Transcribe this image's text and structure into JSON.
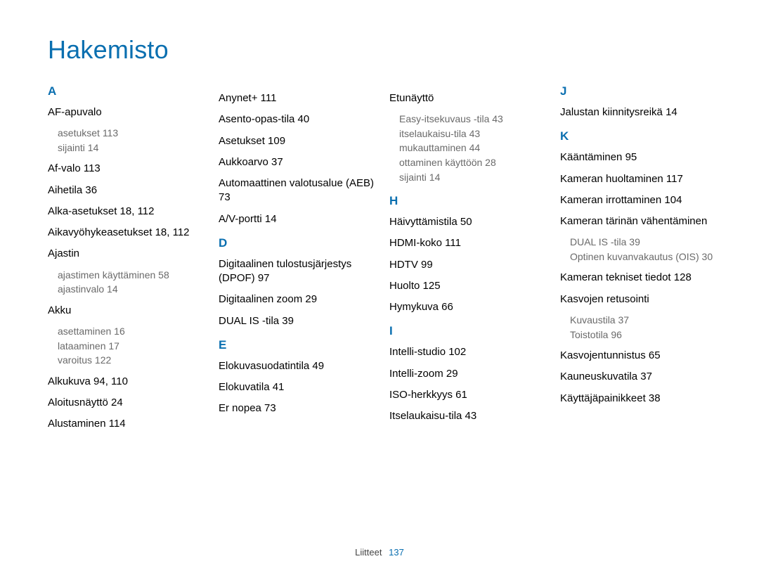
{
  "title": "Hakemisto",
  "footer": {
    "label": "Liitteet",
    "page": "137"
  },
  "colors": {
    "accent": "#0a6fb0",
    "text": "#000000",
    "sub": "#6a6a6a",
    "bg": "#ffffff"
  },
  "columns": [
    [
      {
        "type": "letter",
        "text": "A"
      },
      {
        "type": "entry",
        "text": "AF-apuvalo",
        "subs": [
          "asetukset  113",
          "sijainti  14"
        ]
      },
      {
        "type": "entry",
        "text": "Af-valo  113"
      },
      {
        "type": "entry",
        "text": "Aihetila  36"
      },
      {
        "type": "entry",
        "text": "Alka-asetukset  18, 112"
      },
      {
        "type": "entry",
        "text": "Aikavyöhykeasetukset  18, 112"
      },
      {
        "type": "entry",
        "text": "Ajastin",
        "subs": [
          "ajastimen käyttäminen  58",
          "ajastinvalo  14"
        ]
      },
      {
        "type": "entry",
        "text": "Akku",
        "subs": [
          "asettaminen  16",
          "lataaminen  17",
          "varoitus  122"
        ]
      },
      {
        "type": "entry",
        "text": "Alkukuva  94, 110"
      },
      {
        "type": "entry",
        "text": "Aloitusnäyttö  24"
      },
      {
        "type": "entry",
        "text": "Alustaminen  114"
      }
    ],
    [
      {
        "type": "entry",
        "text": "Anynet+  111"
      },
      {
        "type": "entry",
        "text": "Asento-opas-tila  40"
      },
      {
        "type": "entry",
        "text": "Asetukset  109"
      },
      {
        "type": "entry",
        "text": "Aukkoarvo  37"
      },
      {
        "type": "entry",
        "text": "Automaattinen valotusalue (AEB)  73"
      },
      {
        "type": "entry",
        "text": "A/V-portti  14"
      },
      {
        "type": "letter",
        "text": "D"
      },
      {
        "type": "entry",
        "text": "Digitaalinen tulostusjärjestys (DPOF)  97"
      },
      {
        "type": "entry",
        "text": "Digitaalinen zoom  29"
      },
      {
        "type": "entry",
        "text": "DUAL IS -tila  39"
      },
      {
        "type": "letter",
        "text": "E"
      },
      {
        "type": "entry",
        "text": "Elokuvasuodatintila  49"
      },
      {
        "type": "entry",
        "text": "Elokuvatila  41"
      },
      {
        "type": "entry",
        "text": "Er nopea  73"
      }
    ],
    [
      {
        "type": "entry",
        "text": "Etunäyttö",
        "subs": [
          "Easy-itsekuvaus -tila  43",
          "itselaukaisu-tila  43",
          "mukauttaminen  44",
          "ottaminen käyttöön  28",
          "sijainti  14"
        ]
      },
      {
        "type": "letter",
        "text": "H"
      },
      {
        "type": "entry",
        "text": "Häivyttämistila  50"
      },
      {
        "type": "entry",
        "text": "HDMI-koko  111"
      },
      {
        "type": "entry",
        "text": "HDTV  99"
      },
      {
        "type": "entry",
        "text": "Huolto  125"
      },
      {
        "type": "entry",
        "text": "Hymykuva  66"
      },
      {
        "type": "letter",
        "text": "I"
      },
      {
        "type": "entry",
        "text": "Intelli-studio  102"
      },
      {
        "type": "entry",
        "text": "Intelli-zoom  29"
      },
      {
        "type": "entry",
        "text": "ISO-herkkyys  61"
      },
      {
        "type": "entry",
        "text": "Itselaukaisu-tila  43"
      }
    ],
    [
      {
        "type": "letter",
        "text": "J"
      },
      {
        "type": "entry",
        "text": "Jalustan kiinnitysreikä  14"
      },
      {
        "type": "letter",
        "text": "K"
      },
      {
        "type": "entry",
        "text": "Kääntäminen  95"
      },
      {
        "type": "entry",
        "text": "Kameran huoltaminen  117"
      },
      {
        "type": "entry",
        "text": "Kameran irrottaminen  104"
      },
      {
        "type": "entry",
        "text": "Kameran tärinän vähentäminen",
        "subs": [
          "DUAL IS -tila  39",
          "Optinen kuvanvakautus (OIS)  30"
        ]
      },
      {
        "type": "entry",
        "text": "Kameran tekniset tiedot  128"
      },
      {
        "type": "entry",
        "text": "Kasvojen retusointi",
        "subs": [
          "Kuvaustila  37",
          "Toistotila  96"
        ]
      },
      {
        "type": "entry",
        "text": "Kasvojentunnistus  65"
      },
      {
        "type": "entry",
        "text": "Kauneuskuvatila  37"
      },
      {
        "type": "entry",
        "text": "Käyttäjäpainikkeet  38"
      }
    ]
  ]
}
